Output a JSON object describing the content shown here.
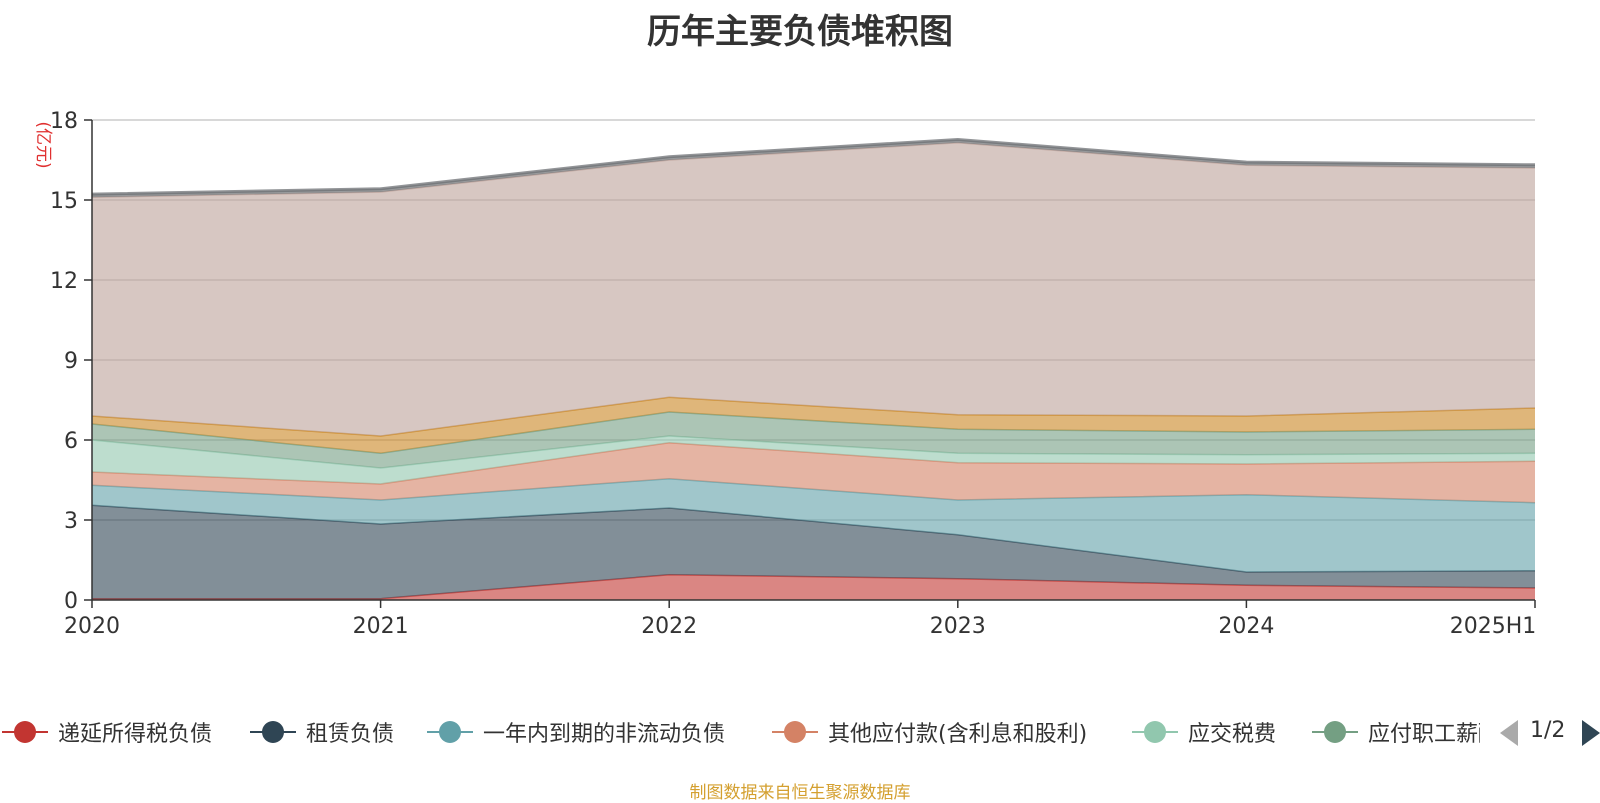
{
  "chart_data": {
    "type": "area",
    "stacked": true,
    "title": "历年主要负债堆积图",
    "ylabel": "(亿元)",
    "xlabel": "",
    "categories": [
      "2020",
      "2021",
      "2022",
      "2023",
      "2024",
      "2025H1"
    ],
    "ylim": [
      0,
      18
    ],
    "yticks": [
      "0",
      "3",
      "6",
      "9",
      "12",
      "15",
      "18"
    ],
    "grid": true,
    "legend_position": "bottom",
    "series": [
      {
        "name": "递延所得税负债",
        "color": "#c23531",
        "values": [
          0.05,
          0.05,
          0.95,
          0.8,
          0.55,
          0.45
        ]
      },
      {
        "name": "租赁负债",
        "color": "#2f4554",
        "values": [
          3.5,
          2.8,
          2.5,
          1.65,
          0.5,
          0.65
        ]
      },
      {
        "name": "一年内到期的非流动负债",
        "color": "#61a0a8",
        "values": [
          0.75,
          0.9,
          1.1,
          1.3,
          2.9,
          2.55
        ]
      },
      {
        "name": "其他应付款(含利息和股利)",
        "color": "#d48265",
        "values": [
          0.5,
          0.6,
          1.35,
          1.4,
          1.15,
          1.55
        ]
      },
      {
        "name": "应交税费",
        "color": "#91c7ae",
        "values": [
          1.2,
          0.6,
          0.25,
          0.35,
          0.35,
          0.3
        ]
      },
      {
        "name": "应付职工薪酬",
        "color": "#749f83",
        "values": [
          0.6,
          0.55,
          0.9,
          0.9,
          0.85,
          0.9
        ]
      },
      {
        "name": "",
        "color": "#ca8622",
        "values": [
          0.3,
          0.65,
          0.55,
          0.55,
          0.6,
          0.8
        ]
      },
      {
        "name": "",
        "color": "#bda29a",
        "values": [
          8.2,
          9.15,
          8.9,
          10.2,
          9.4,
          9.0
        ]
      },
      {
        "name": "",
        "color": "#6e7074",
        "values": [
          0.12,
          0.12,
          0.12,
          0.12,
          0.12,
          0.12
        ]
      }
    ]
  },
  "legend": {
    "page": "1/2",
    "visible_labels": [
      "递延所得税负债",
      "租赁负债",
      "一年内到期的非流动负债",
      "其他应付款(含利息和股利)",
      "应交税费",
      "应付职工薪酬"
    ]
  },
  "source": "制图数据来自恒生聚源数据库"
}
